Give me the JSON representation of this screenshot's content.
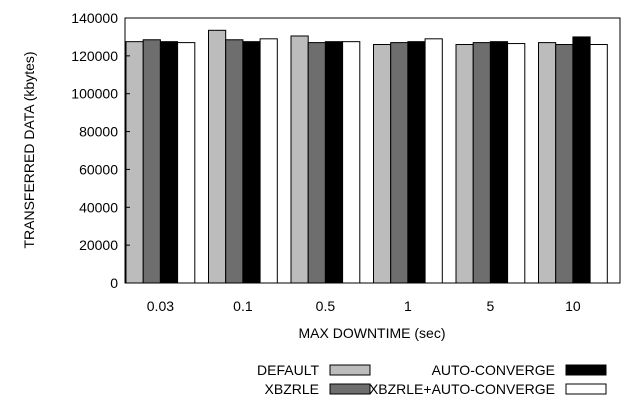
{
  "chart_data": {
    "type": "bar",
    "title": "",
    "xlabel": "MAX DOWNTIME (sec)",
    "ylabel": "TRANSFERRED DATA (kbytes)",
    "ylim": [
      0,
      140000
    ],
    "yticks": [
      "0",
      "20000",
      "40000",
      "60000",
      "80000",
      "100000",
      "120000",
      "140000"
    ],
    "categories": [
      "0.03",
      "0.1",
      "0.5",
      "1",
      "5",
      "10"
    ],
    "grid": false,
    "legend_position": "bottom",
    "series": [
      {
        "name": "DEFAULT",
        "color": "#bcbcbc",
        "values": [
          127500,
          133500,
          130500,
          126000,
          126000,
          127000
        ]
      },
      {
        "name": "XBZRLE",
        "color": "#6e6e6e",
        "values": [
          128500,
          128500,
          127000,
          127000,
          127000,
          126000
        ]
      },
      {
        "name": "AUTO-CONVERGE",
        "color": "#000000",
        "values": [
          127500,
          127500,
          127500,
          127500,
          127500,
          130000
        ]
      },
      {
        "name": "XBZRLE+AUTO-CONVERGE",
        "color": "#ffffff",
        "values": [
          127000,
          129000,
          127500,
          129000,
          126500,
          126000
        ]
      }
    ]
  }
}
